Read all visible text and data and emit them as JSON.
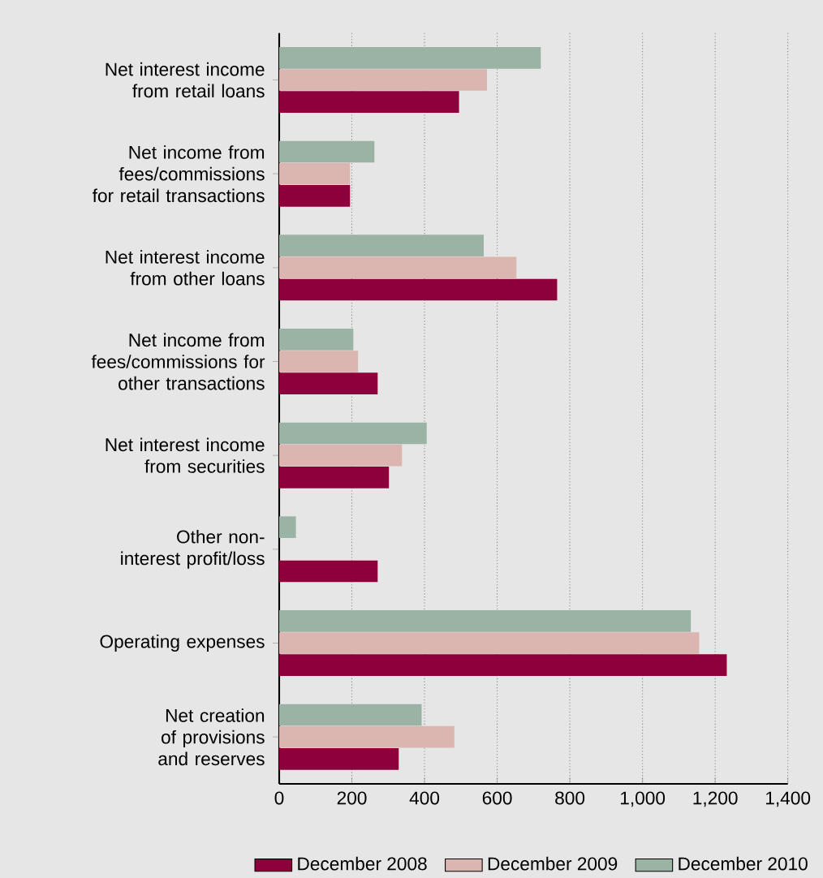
{
  "chart_data": {
    "type": "bar",
    "orientation": "horizontal",
    "categories": [
      "Net interest income from retail loans",
      "Net income from fees/commissions for retail transactions",
      "Net interest income from other loans",
      "Net income from fees/commissions for other transactions",
      "Net interest income from securities",
      "Other non-interest profit/loss",
      "Operating expenses",
      "Net creation of provisions and reserves"
    ],
    "series": [
      {
        "name": "December 2008",
        "color": "#8e003b",
        "values": [
          495,
          195,
          765,
          271,
          302,
          271,
          1232,
          329
        ]
      },
      {
        "name": "December 2009",
        "color": "#dbb5b0",
        "values": [
          572,
          195,
          653,
          217,
          338,
          null,
          1156,
          482
        ]
      },
      {
        "name": "December 2010",
        "color": "#9bb3a4",
        "values": [
          720,
          262,
          563,
          204,
          406,
          46,
          1133,
          392
        ]
      }
    ],
    "xlim": [
      0,
      1400
    ],
    "xticks": [
      0,
      200,
      400,
      600,
      800,
      {
        "value": 1000,
        "label": "1,000"
      },
      {
        "value": 1200,
        "label": "1,200"
      },
      {
        "value": 1400,
        "label": "1,400"
      }
    ],
    "grid": "x",
    "legend": "bottom"
  }
}
